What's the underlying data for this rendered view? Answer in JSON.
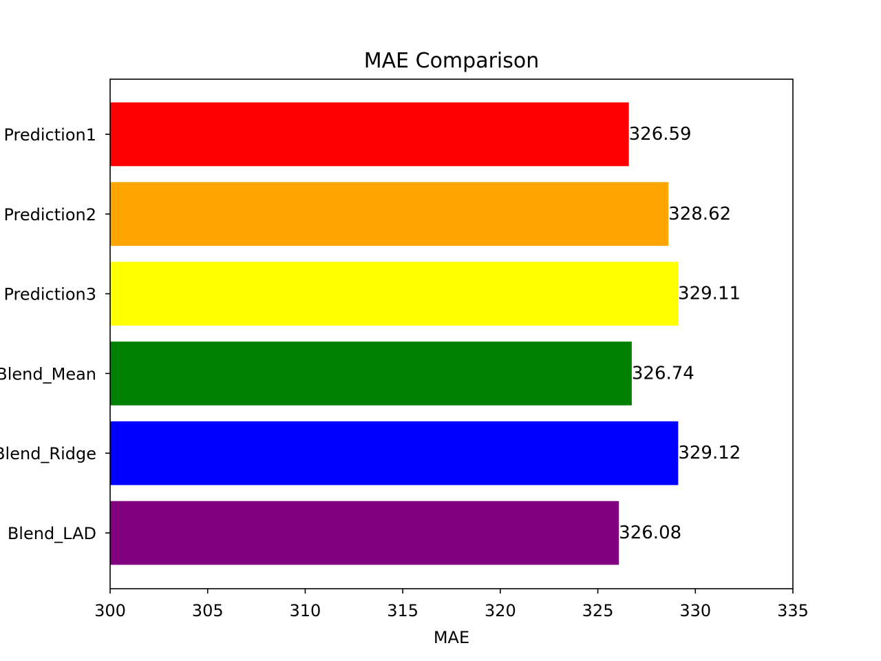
{
  "chart_data": {
    "type": "bar",
    "orientation": "horizontal",
    "title": "MAE Comparison",
    "xlabel": "MAE",
    "ylabel": "",
    "xlim": [
      300,
      335
    ],
    "xticks": [
      300,
      305,
      310,
      315,
      320,
      325,
      330,
      335
    ],
    "categories": [
      "Prediction1",
      "Prediction2",
      "Prediction3",
      "Blend_Mean",
      "Blend_Ridge",
      "Blend_LAD"
    ],
    "values": [
      326.59,
      328.62,
      329.11,
      326.74,
      329.12,
      326.08
    ],
    "value_labels": [
      "326.59",
      "328.62",
      "329.11",
      "326.74",
      "329.12",
      "326.08"
    ],
    "colors": [
      "#ff0000",
      "#ffa500",
      "#ffff00",
      "#008000",
      "#0000ff",
      "#800080"
    ],
    "grid": false,
    "legend": "none"
  }
}
